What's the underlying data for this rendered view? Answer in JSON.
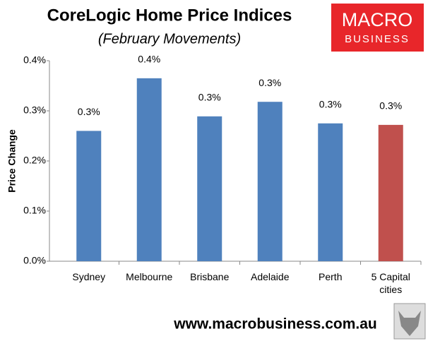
{
  "chart_data": {
    "type": "bar",
    "title": "CoreLogic Home Price Indices",
    "subtitle": "(February Movements)",
    "y_label": "Price Change",
    "categories": [
      "Sydney",
      "Melbourne",
      "Brisbane",
      "Adelaide",
      "Perth",
      "5 Capital cities"
    ],
    "values": [
      0.26,
      0.365,
      0.289,
      0.318,
      0.275,
      0.272
    ],
    "value_labels": [
      "0.3%",
      "0.4%",
      "0.3%",
      "0.3%",
      "0.3%",
      "0.3%"
    ],
    "colors": [
      "#4f81bd",
      "#4f81bd",
      "#4f81bd",
      "#4f81bd",
      "#4f81bd",
      "#c0504d"
    ],
    "ylim": [
      0,
      0.4
    ],
    "yticks": [
      {
        "value": 0,
        "label": "0.0%"
      },
      {
        "value": 0.1,
        "label": "0.1%"
      },
      {
        "value": 0.2,
        "label": "0.2%"
      },
      {
        "value": 0.3,
        "label": "0.3%"
      },
      {
        "value": 0.4,
        "label": "0.4%"
      }
    ],
    "grid": false
  },
  "logo": {
    "line1": "MACRO",
    "line2": "BUSINESS"
  },
  "footer": "www.macrobusiness.com.au"
}
